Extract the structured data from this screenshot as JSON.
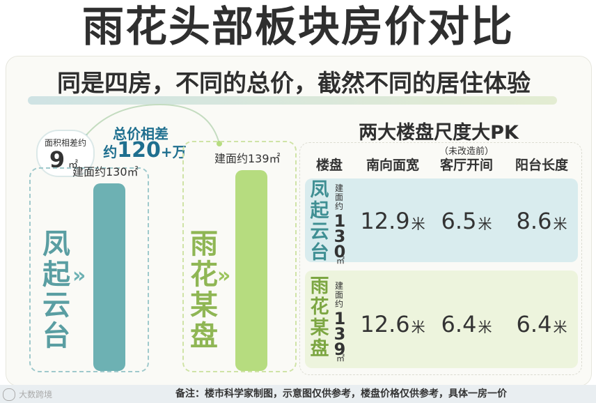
{
  "title": "雨花头部板块房价对比",
  "subtitle": "同是四房，不同的总价，截然不同的居住体验",
  "area_diff": {
    "label": "面积相差约",
    "value": "9",
    "unit": "㎡"
  },
  "price_diff": {
    "line1": "总价相差",
    "prefix": "约",
    "value": "120",
    "suffix": "+万"
  },
  "footer": "备注：楼市科学家制图，示意图仅供参考，楼盘价格仅供参考，具体一房一价",
  "watermark": "大数跨境",
  "colors": {
    "teal": "#6db1b3",
    "green": "#b6dc7f",
    "teal_row": "#d9ecee",
    "green_row": "#edf4dd",
    "dash_teal": "#9fc9cc",
    "dash_green": "#cfe3a6"
  },
  "chart_data": {
    "type": "bar",
    "categories": [
      "凤起云台",
      "雨花某盘"
    ],
    "values": [
      130,
      139
    ],
    "value_labels": [
      "建面约130㎡",
      "建面约139㎡"
    ],
    "ylim": [
      0,
      145
    ]
  },
  "table": {
    "title": "两大楼盘尺度大PK",
    "headers": [
      "楼盘",
      "南向面宽",
      "客厅开间",
      "阳台长度"
    ],
    "header_note": "（未改造前）",
    "rows": [
      {
        "name": "凤起云台",
        "area_label": "建面约",
        "area_value": "130",
        "area_unit": "㎡",
        "values": [
          "12.9",
          "6.5",
          "8.6"
        ],
        "unit": "米"
      },
      {
        "name": "雨花某盘",
        "area_label": "建面约",
        "area_value": "139",
        "area_unit": "㎡",
        "values": [
          "12.6",
          "6.4",
          "6.4"
        ],
        "unit": "米"
      }
    ]
  }
}
